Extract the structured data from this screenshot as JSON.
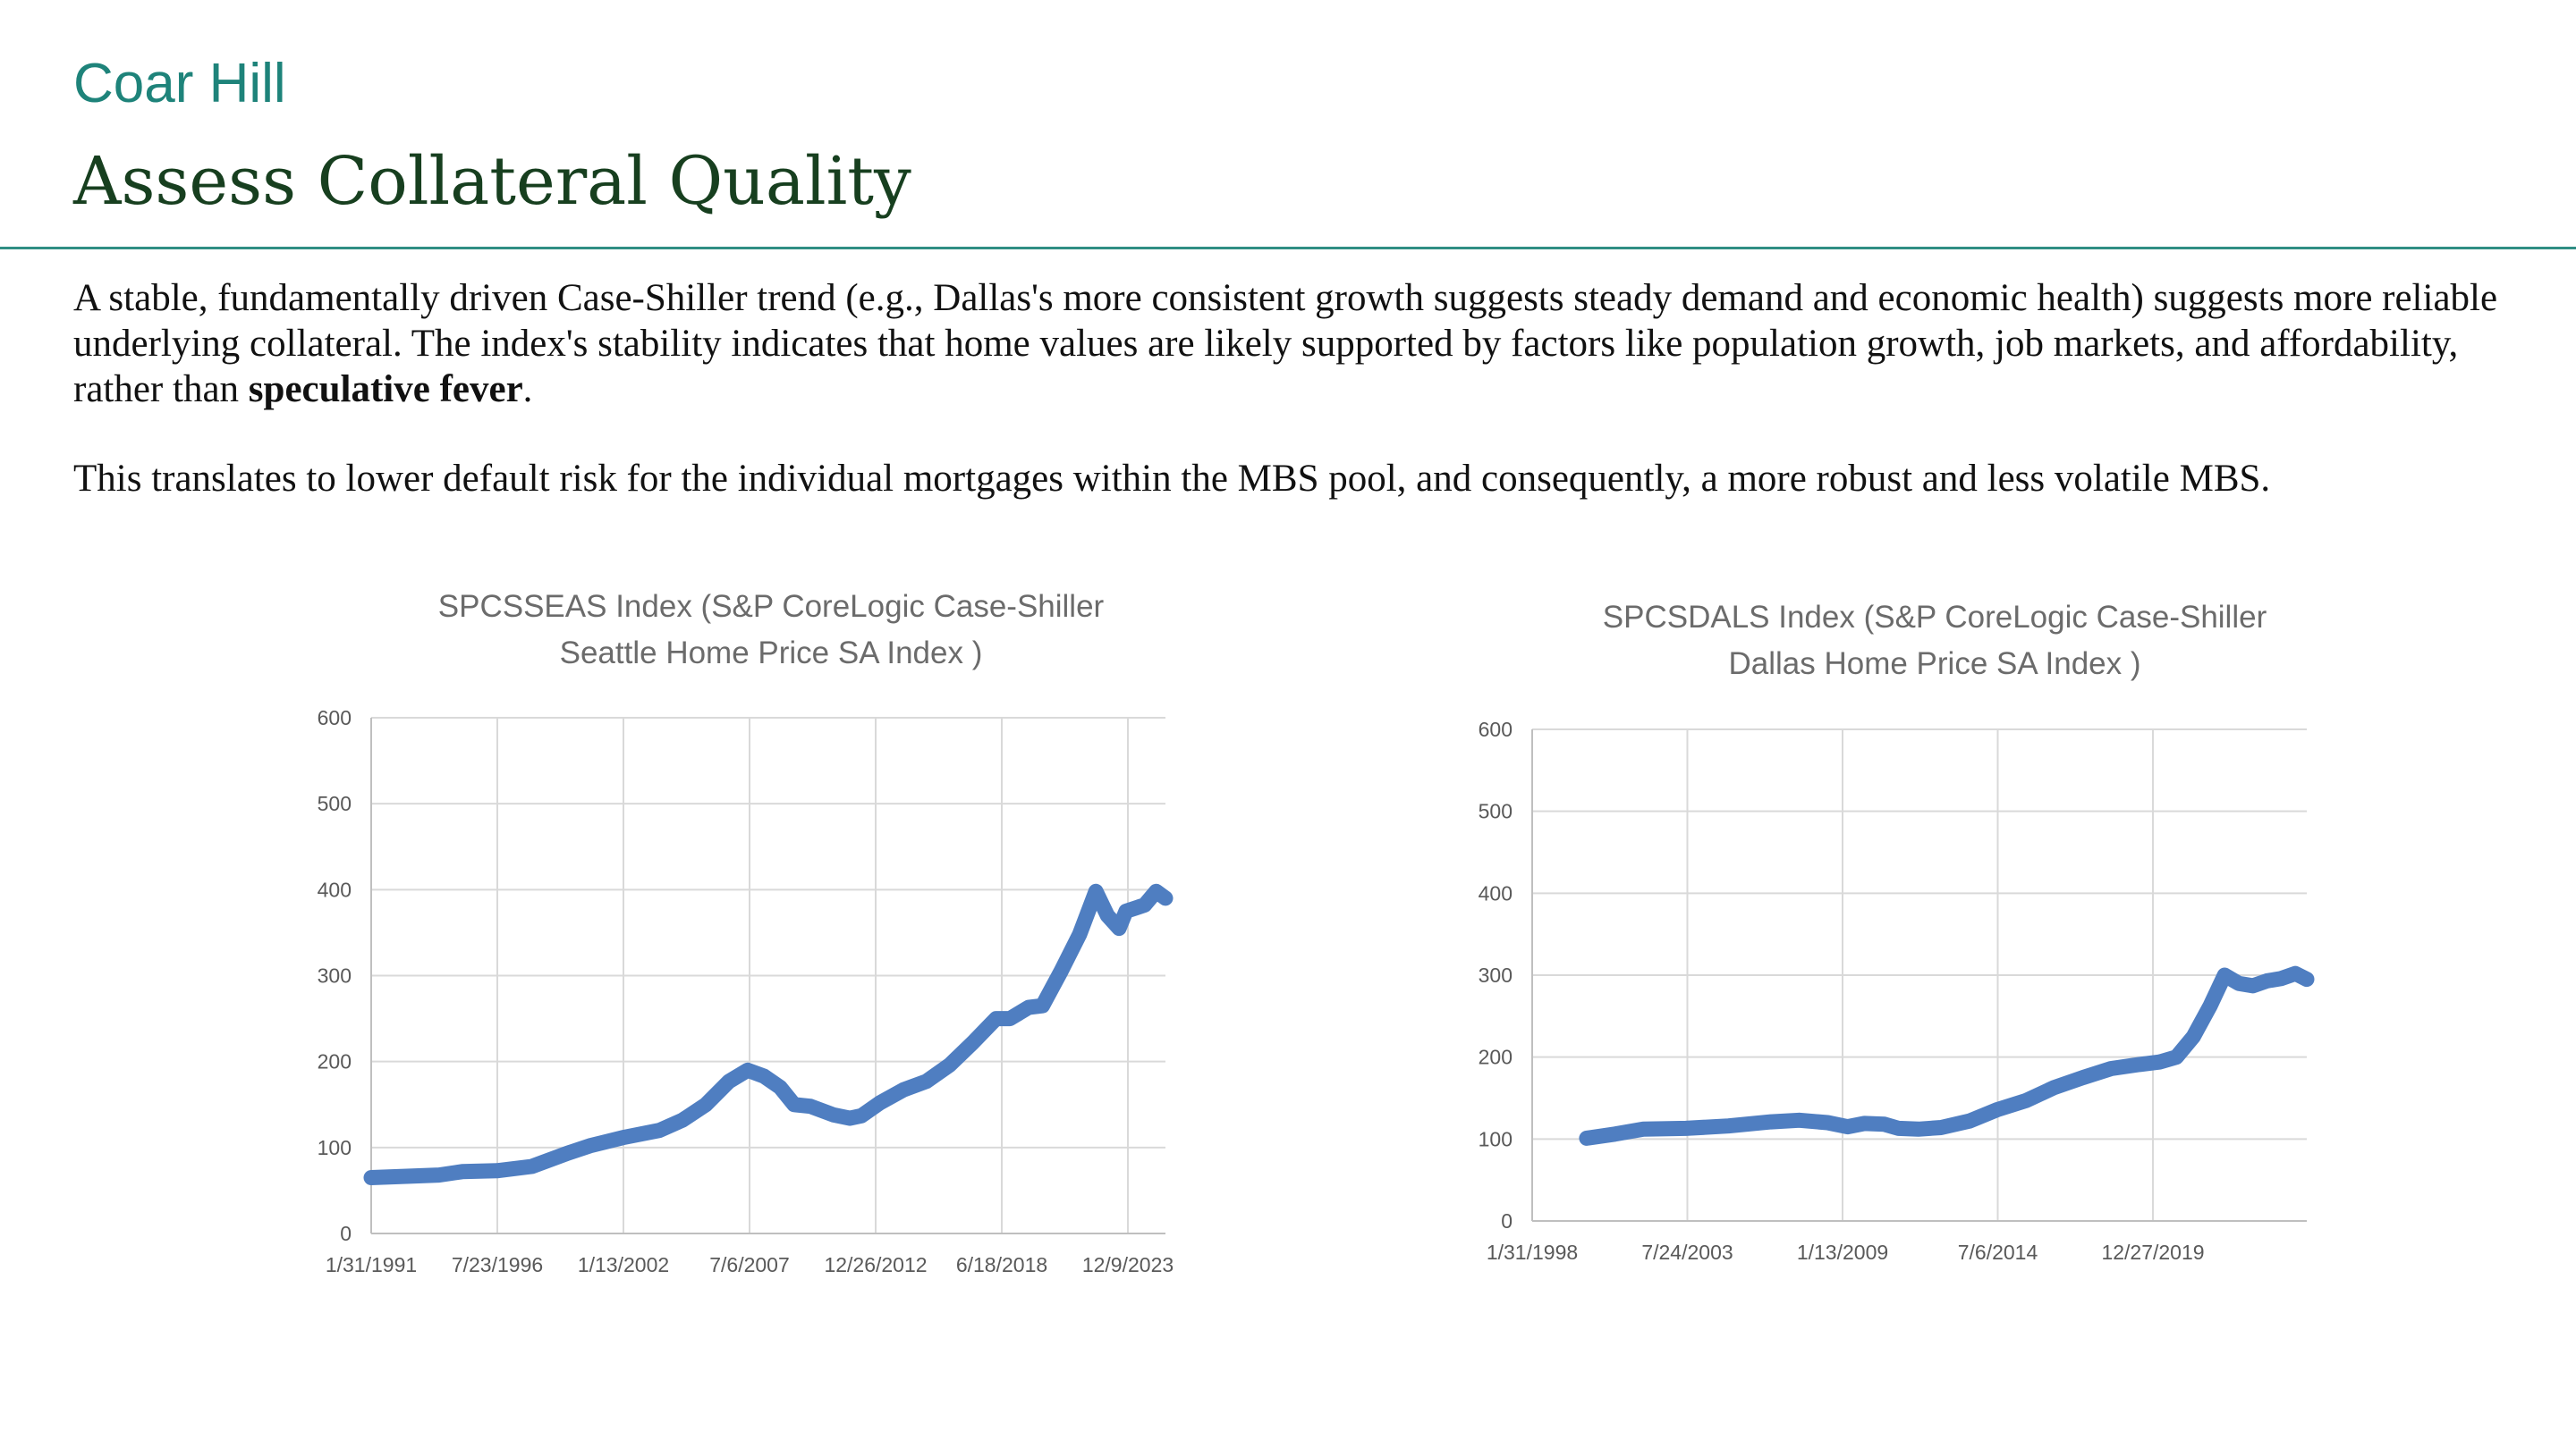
{
  "header": {
    "brand": "Coar Hill",
    "title": "Assess Collateral Quality"
  },
  "body": {
    "para1_text": "A stable, fundamentally driven Case-Shiller trend (e.g., Dallas's more consistent growth suggests steady demand and economic health) suggests more reliable underlying collateral. The index's stability indicates that home values are likely supported by factors like population growth, job markets, and affordability, rather than ",
    "para1_bold": "speculative fever",
    "para1_end": ".",
    "para2": "This translates to lower default risk for the individual mortgages within the MBS pool, and consequently, a more robust and less volatile MBS."
  },
  "colors": {
    "brand": "#1e837a",
    "title": "#173f1f",
    "rule": "#2f8e84",
    "series": "#4f7ec1",
    "grid": "#d9d9d9"
  },
  "chart_data": [
    {
      "type": "line",
      "title_lines": [
        "SPCSSEAS Index (S&P CoreLogic Case-Shiller",
        "Seattle Home Price SA Index )"
      ],
      "x_ticks": [
        "1/31/1991",
        "7/23/1996",
        "1/13/2002",
        "7/6/2007",
        "12/26/2012",
        "6/18/2018",
        "12/9/2023"
      ],
      "x_range": [
        1991.08,
        2025.3
      ],
      "ylim": [
        0,
        600
      ],
      "y_ticks": [
        0,
        100,
        200,
        300,
        400,
        500,
        600
      ],
      "grid": true,
      "x": [
        1991.08,
        1993.0,
        1994.0,
        1995.0,
        1996.5,
        1998.0,
        1999.5,
        2000.5,
        2002.0,
        2003.5,
        2004.5,
        2005.5,
        2006.5,
        2007.3,
        2008.0,
        2008.7,
        2009.3,
        2010.0,
        2011.0,
        2011.7,
        2012.2,
        2013.0,
        2014.0,
        2015.0,
        2016.0,
        2017.0,
        2018.0,
        2018.6,
        2019.4,
        2020.0,
        2020.8,
        2021.6,
        2022.3,
        2022.8,
        2023.3,
        2023.6,
        2024.4,
        2024.9,
        2025.3
      ],
      "y": [
        65,
        67,
        68,
        72,
        73,
        78,
        93,
        102,
        112,
        120,
        132,
        150,
        177,
        190,
        183,
        170,
        150,
        148,
        138,
        134,
        137,
        152,
        167,
        177,
        196,
        222,
        250,
        250,
        263,
        265,
        305,
        348,
        398,
        370,
        355,
        375,
        382,
        398,
        390
      ],
      "series_color": "#4f7ec1"
    },
    {
      "type": "line",
      "title_lines": [
        "SPCSDALS Index (S&P CoreLogic Case-Shiller",
        "Dallas Home Price SA Index )"
      ],
      "x_ticks": [
        "1/31/1998",
        "7/24/2003",
        "1/13/2009",
        "7/6/2014",
        "12/27/2019"
      ],
      "x_range": [
        1998.08,
        2025.4
      ],
      "ylim": [
        0,
        600
      ],
      "y_ticks": [
        0,
        100,
        200,
        300,
        400,
        500,
        600
      ],
      "grid": true,
      "x": [
        2000.0,
        2001.0,
        2002.0,
        2003.5,
        2005.0,
        2006.5,
        2007.5,
        2008.5,
        2009.2,
        2009.8,
        2010.5,
        2011.0,
        2011.7,
        2012.5,
        2013.5,
        2014.5,
        2015.5,
        2016.5,
        2017.5,
        2018.5,
        2019.5,
        2020.2,
        2020.8,
        2021.4,
        2022.0,
        2022.5,
        2023.0,
        2023.5,
        2024.0,
        2024.5,
        2025.0,
        2025.4
      ],
      "y": [
        101,
        106,
        112,
        113,
        116,
        121,
        123,
        120,
        115,
        119,
        118,
        113,
        112,
        114,
        122,
        136,
        147,
        163,
        175,
        186,
        191,
        194,
        200,
        225,
        263,
        300,
        290,
        287,
        293,
        296,
        302,
        295
      ],
      "series_color": "#4f7ec1"
    }
  ]
}
